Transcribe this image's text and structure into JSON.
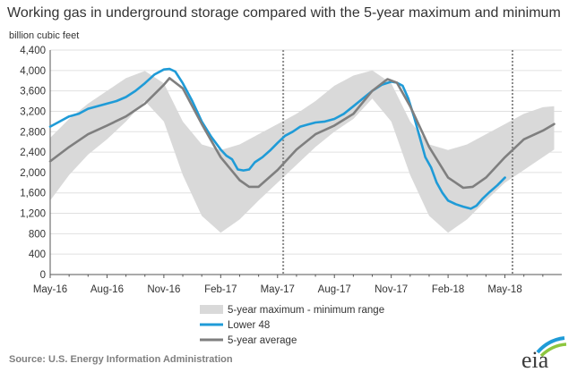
{
  "title": "Working gas in underground  storage compared with the 5-year maximum and minimum",
  "unit_label": "billion cubic feet",
  "source": "Source:  U.S. Energy Information Administration",
  "logo_text": "eia",
  "colors": {
    "band": "#d9d9d9",
    "lower48": "#1f9bd7",
    "avg": "#7f7f7f",
    "grid": "#e0e0e0",
    "marker": "#8c8c8c",
    "logo_arc_blue": "#1f9bd7",
    "logo_arc_green": "#8dc63f"
  },
  "chart_data": {
    "type": "area",
    "y_ticks": [
      "0",
      "400",
      "800",
      "1,200",
      "1,600",
      "2,000",
      "2,400",
      "2,800",
      "3,200",
      "3,600",
      "4,000",
      "4,400"
    ],
    "ylim": [
      0,
      4400
    ],
    "x_ticks": [
      "May-16",
      "Aug-16",
      "Nov-16",
      "Feb-17",
      "May-17",
      "Aug-17",
      "Nov-17",
      "Feb-18",
      "May-18"
    ],
    "xlim": [
      0,
      27
    ],
    "x_units": "months after May-16",
    "grid": true,
    "reference_lines": [
      12.3,
      24.4
    ],
    "legend": [
      {
        "key": "band",
        "label": "5-year maximum - minimum range"
      },
      {
        "key": "lower48",
        "label": "Lower 48"
      },
      {
        "key": "avg",
        "label": "5-year average"
      }
    ],
    "band_upper": [
      [
        0,
        2680
      ],
      [
        1,
        3050
      ],
      [
        2,
        3350
      ],
      [
        3,
        3600
      ],
      [
        4,
        3850
      ],
      [
        5,
        3990
      ],
      [
        6,
        3750
      ],
      [
        7,
        3000
      ],
      [
        8,
        2550
      ],
      [
        9,
        2440
      ],
      [
        10,
        2550
      ],
      [
        11,
        2750
      ],
      [
        12,
        2950
      ],
      [
        13,
        3150
      ],
      [
        14,
        3400
      ],
      [
        15,
        3700
      ],
      [
        16,
        3900
      ],
      [
        17,
        4000
      ],
      [
        18,
        3750
      ],
      [
        19,
        3000
      ],
      [
        20,
        2550
      ],
      [
        21,
        2440
      ],
      [
        22,
        2550
      ],
      [
        23,
        2750
      ],
      [
        24,
        2950
      ],
      [
        25,
        3150
      ],
      [
        26,
        3280
      ],
      [
        26.6,
        3300
      ]
    ],
    "band_lower": [
      [
        0,
        1450
      ],
      [
        1,
        1950
      ],
      [
        2,
        2350
      ],
      [
        3,
        2650
      ],
      [
        4,
        3000
      ],
      [
        5,
        3400
      ],
      [
        6,
        3000
      ],
      [
        7,
        1950
      ],
      [
        8,
        1150
      ],
      [
        9,
        820
      ],
      [
        10,
        1080
      ],
      [
        11,
        1450
      ],
      [
        12,
        1800
      ],
      [
        13,
        2150
      ],
      [
        14,
        2500
      ],
      [
        15,
        2800
      ],
      [
        16,
        3050
      ],
      [
        17,
        3450
      ],
      [
        18,
        3000
      ],
      [
        19,
        1950
      ],
      [
        20,
        1150
      ],
      [
        21,
        820
      ],
      [
        22,
        1080
      ],
      [
        23,
        1450
      ],
      [
        24,
        1800
      ],
      [
        25,
        2050
      ],
      [
        26,
        2300
      ],
      [
        26.6,
        2450
      ]
    ],
    "series": [
      {
        "name": "Lower 48",
        "key": "lower48",
        "points": [
          [
            0,
            2900
          ],
          [
            0.5,
            3000
          ],
          [
            1,
            3100
          ],
          [
            1.5,
            3150
          ],
          [
            2,
            3250
          ],
          [
            2.5,
            3300
          ],
          [
            3,
            3350
          ],
          [
            3.5,
            3400
          ],
          [
            4,
            3480
          ],
          [
            4.5,
            3600
          ],
          [
            5,
            3750
          ],
          [
            5.5,
            3920
          ],
          [
            6,
            4020
          ],
          [
            6.3,
            4030
          ],
          [
            6.6,
            3980
          ],
          [
            7,
            3750
          ],
          [
            7.5,
            3400
          ],
          [
            8,
            3000
          ],
          [
            8.5,
            2700
          ],
          [
            9,
            2450
          ],
          [
            9.3,
            2330
          ],
          [
            9.6,
            2260
          ],
          [
            9.9,
            2060
          ],
          [
            10.2,
            2040
          ],
          [
            10.5,
            2060
          ],
          [
            10.8,
            2200
          ],
          [
            11.2,
            2300
          ],
          [
            11.6,
            2430
          ],
          [
            12,
            2580
          ],
          [
            12.4,
            2720
          ],
          [
            12.8,
            2800
          ],
          [
            13.2,
            2900
          ],
          [
            13.6,
            2940
          ],
          [
            14,
            2980
          ],
          [
            14.5,
            3000
          ],
          [
            15,
            3050
          ],
          [
            15.5,
            3150
          ],
          [
            16,
            3300
          ],
          [
            16.5,
            3450
          ],
          [
            17,
            3600
          ],
          [
            17.5,
            3720
          ],
          [
            18,
            3780
          ],
          [
            18.3,
            3760
          ],
          [
            18.6,
            3700
          ],
          [
            18.9,
            3450
          ],
          [
            19.2,
            3100
          ],
          [
            19.5,
            2700
          ],
          [
            19.8,
            2300
          ],
          [
            20.1,
            2100
          ],
          [
            20.4,
            1800
          ],
          [
            20.7,
            1600
          ],
          [
            21,
            1450
          ],
          [
            21.4,
            1380
          ],
          [
            21.8,
            1330
          ],
          [
            22.2,
            1290
          ],
          [
            22.5,
            1350
          ],
          [
            22.8,
            1480
          ],
          [
            23.2,
            1620
          ],
          [
            23.6,
            1750
          ],
          [
            24,
            1900
          ]
        ]
      },
      {
        "name": "5-year average",
        "key": "avg",
        "points": [
          [
            0,
            2220
          ],
          [
            1,
            2500
          ],
          [
            2,
            2750
          ],
          [
            3,
            2920
          ],
          [
            4,
            3100
          ],
          [
            5,
            3350
          ],
          [
            6,
            3720
          ],
          [
            6.3,
            3850
          ],
          [
            7,
            3650
          ],
          [
            8,
            2950
          ],
          [
            9,
            2300
          ],
          [
            10,
            1850
          ],
          [
            10.5,
            1720
          ],
          [
            11,
            1720
          ],
          [
            12,
            2050
          ],
          [
            13,
            2450
          ],
          [
            14,
            2750
          ],
          [
            15,
            2920
          ],
          [
            16,
            3150
          ],
          [
            17,
            3600
          ],
          [
            17.8,
            3830
          ],
          [
            18.3,
            3760
          ],
          [
            19,
            3300
          ],
          [
            20,
            2500
          ],
          [
            21,
            1900
          ],
          [
            21.8,
            1700
          ],
          [
            22.3,
            1720
          ],
          [
            23,
            1900
          ],
          [
            24,
            2300
          ],
          [
            25,
            2650
          ],
          [
            26,
            2820
          ],
          [
            26.6,
            2950
          ]
        ]
      }
    ]
  }
}
